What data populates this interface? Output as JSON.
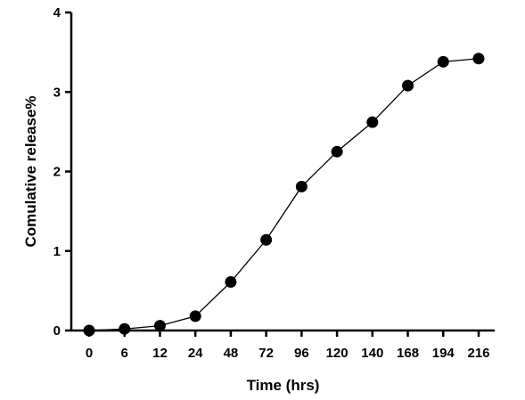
{
  "chart_data": {
    "type": "line",
    "title": "",
    "xlabel": "Time (hrs)",
    "ylabel": "Comulative release%",
    "x_axis": "categorical",
    "categories": [
      "0",
      "6",
      "12",
      "24",
      "48",
      "72",
      "96",
      "120",
      "140",
      "168",
      "194",
      "216"
    ],
    "y_ticks": [
      "0",
      "1",
      "2",
      "3",
      "4"
    ],
    "ylim": [
      0,
      4
    ],
    "grid": false,
    "legend": "none",
    "series": [
      {
        "values": [
          0.0,
          0.02,
          0.06,
          0.18,
          0.61,
          1.14,
          1.81,
          2.25,
          2.62,
          3.08,
          3.38,
          3.42
        ]
      }
    ],
    "colors": {
      "line": "#000000",
      "marker": "#000000",
      "axis": "#000000"
    }
  }
}
